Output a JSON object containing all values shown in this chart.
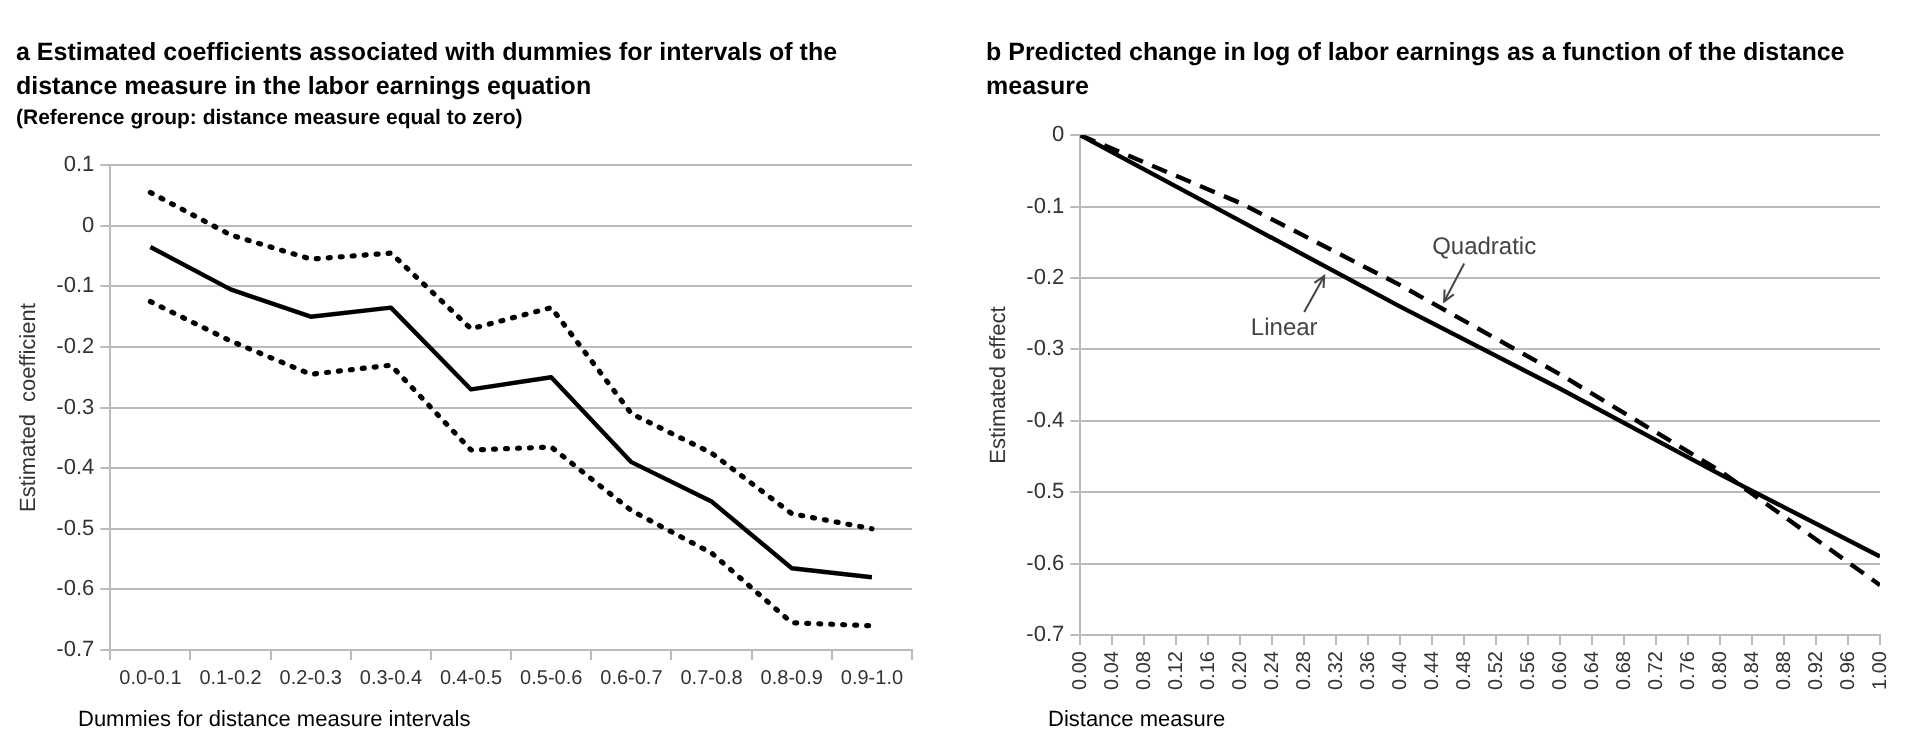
{
  "chart_data": [
    {
      "type": "line",
      "title": "a Estimated coefficients associated with dummies for intervals of the distance measure  in the labor earnings equation",
      "subtitle": "(Reference group: distance measure equal to zero)",
      "xlabel": "Dummies for distance measure intervals",
      "ylabel": "Estimated  coefficient",
      "categories": [
        "0.0-0.1",
        "0.1-0.2",
        "0.2-0.3",
        "0.3-0.4",
        "0.4-0.5",
        "0.5-0.6",
        "0.6-0.7",
        "0.7-0.8",
        "0.8-0.9",
        "0.9-1.0"
      ],
      "series": [
        {
          "color": "#000000",
          "line_style": "solid",
          "values": [
            -0.035,
            -0.105,
            -0.15,
            -0.135,
            -0.27,
            -0.25,
            -0.39,
            -0.455,
            -0.565,
            -0.58
          ]
        },
        {
          "color": "#000000",
          "line_style": "dotted",
          "values": [
            0.055,
            -0.015,
            -0.055,
            -0.045,
            -0.17,
            -0.135,
            -0.31,
            -0.375,
            -0.475,
            -0.5
          ]
        },
        {
          "color": "#000000",
          "line_style": "dotted",
          "values": [
            -0.125,
            -0.19,
            -0.245,
            -0.23,
            -0.37,
            -0.365,
            -0.47,
            -0.54,
            -0.655,
            -0.66
          ]
        }
      ],
      "ylim": [
        -0.7,
        0.1
      ],
      "yticks": [
        -0.7,
        -0.6,
        -0.5,
        -0.4,
        -0.3,
        -0.2,
        -0.1,
        0,
        0.1
      ],
      "grid": "y",
      "legend": false,
      "marker": "none"
    },
    {
      "type": "line",
      "title": "b Predicted change in log of labor earnings as a function of the distance measure",
      "xlabel": "Distance measure",
      "ylabel": "Estimated effect",
      "series": [
        {
          "name": "Linear",
          "color": "#000000",
          "line_style": "solid",
          "x": [
            0,
            0.2,
            0.4,
            0.6,
            0.8,
            1.0
          ],
          "values": [
            0,
            -0.12,
            -0.24,
            -0.355,
            -0.475,
            -0.59
          ]
        },
        {
          "name": "Quadratic",
          "color": "#000000",
          "line_style": "dashed",
          "x": [
            0,
            0.2,
            0.4,
            0.6,
            0.8,
            1.0
          ],
          "values": [
            0,
            -0.095,
            -0.21,
            -0.335,
            -0.47,
            -0.63
          ]
        }
      ],
      "xlim": [
        0,
        1
      ],
      "xticks": [
        {
          "value": 0,
          "label": "0.00"
        },
        {
          "value": 0.04,
          "label": "0.04"
        },
        {
          "value": 0.08,
          "label": "0.08"
        },
        {
          "value": 0.12,
          "label": "0.12"
        },
        {
          "value": 0.16,
          "label": "0.16"
        },
        {
          "value": 0.2,
          "label": "0.20"
        },
        {
          "value": 0.24,
          "label": "0.24"
        },
        {
          "value": 0.28,
          "label": "0.28"
        },
        {
          "value": 0.32,
          "label": "0.32"
        },
        {
          "value": 0.36,
          "label": "0.36"
        },
        {
          "value": 0.4,
          "label": "0.40"
        },
        {
          "value": 0.44,
          "label": "0.44"
        },
        {
          "value": 0.48,
          "label": "0.48"
        },
        {
          "value": 0.52,
          "label": "0.52"
        },
        {
          "value": 0.56,
          "label": "0.56"
        },
        {
          "value": 0.6,
          "label": "0.60"
        },
        {
          "value": 0.64,
          "label": "0.64"
        },
        {
          "value": 0.68,
          "label": "0.68"
        },
        {
          "value": 0.72,
          "label": "0.72"
        },
        {
          "value": 0.76,
          "label": "0.76"
        },
        {
          "value": 0.8,
          "label": "0.80"
        },
        {
          "value": 0.84,
          "label": "0.84"
        },
        {
          "value": 0.88,
          "label": "0.88"
        },
        {
          "value": 0.92,
          "label": "0.92"
        },
        {
          "value": 0.96,
          "label": "0.96"
        },
        {
          "value": 1,
          "label": "1.00"
        }
      ],
      "ylim": [
        -0.7,
        0
      ],
      "yticks": [
        -0.7,
        -0.6,
        -0.5,
        -0.4,
        -0.3,
        -0.2,
        -0.1,
        0
      ],
      "grid": "y",
      "legend": false,
      "marker": "none"
    }
  ]
}
